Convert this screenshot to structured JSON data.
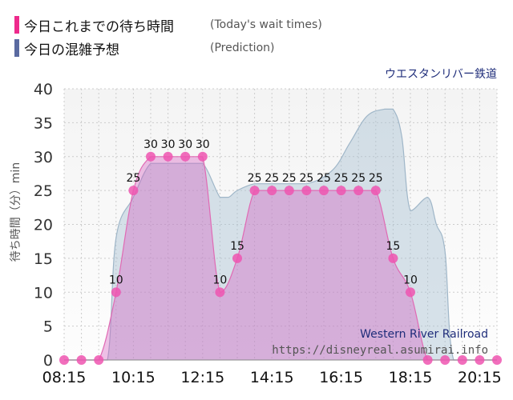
{
  "legend": [
    {
      "label": "今日これまでの待ち時間",
      "note": "(Today's wait times)",
      "color": "#ee2a8c"
    },
    {
      "label": "今日の混雑予想",
      "note": "(Prediction)",
      "color": "#5a6aa0"
    }
  ],
  "attraction_name": "ウエスタンリバー鉄道",
  "watermark": {
    "name": "Western River Railroad",
    "url": "https://disneyreal.asumirai.info"
  },
  "chart_data": {
    "type": "area",
    "ylabel": "待ち時間（分）min",
    "xlabel": "",
    "ylim": [
      0,
      40
    ],
    "yticks": [
      0,
      5,
      10,
      15,
      20,
      25,
      30,
      35,
      40
    ],
    "xticks": [
      "08:15",
      "10:15",
      "12:15",
      "14:15",
      "16:15",
      "18:15",
      "20:15"
    ],
    "grid": true,
    "series": [
      {
        "name": "今日これまでの待ち時間",
        "color": "#ee2a8c",
        "x": [
          "08:15",
          "08:45",
          "09:15",
          "09:45",
          "10:15",
          "10:45",
          "11:15",
          "11:45",
          "12:15",
          "12:45",
          "13:15",
          "13:45",
          "14:15",
          "14:45",
          "15:15",
          "15:45",
          "16:15",
          "16:45",
          "17:15",
          "17:45",
          "18:15",
          "18:45",
          "19:15",
          "19:45",
          "20:15",
          "20:45"
        ],
        "values": [
          0,
          0,
          0,
          10,
          25,
          30,
          30,
          30,
          30,
          10,
          15,
          25,
          25,
          25,
          25,
          25,
          25,
          25,
          25,
          15,
          10,
          0,
          0,
          0,
          0,
          0
        ]
      },
      {
        "name": "今日の混雑予想",
        "color": "#a9c0d2",
        "x": [
          "08:15",
          "09:00",
          "09:30",
          "09:45",
          "10:15",
          "10:45",
          "11:15",
          "11:45",
          "12:15",
          "12:45",
          "13:00",
          "13:15",
          "13:45",
          "14:15",
          "15:15",
          "16:00",
          "16:30",
          "17:00",
          "17:30",
          "17:45",
          "18:00",
          "18:15",
          "18:45",
          "19:00",
          "19:15",
          "19:30",
          "20:15",
          "20:45"
        ],
        "values": [
          0,
          0,
          0,
          18,
          24,
          29,
          29,
          29,
          29,
          24,
          24,
          25,
          26,
          26,
          26,
          28,
          32,
          36,
          37,
          37,
          33,
          22,
          24,
          20,
          16,
          0,
          0,
          0
        ]
      }
    ]
  }
}
